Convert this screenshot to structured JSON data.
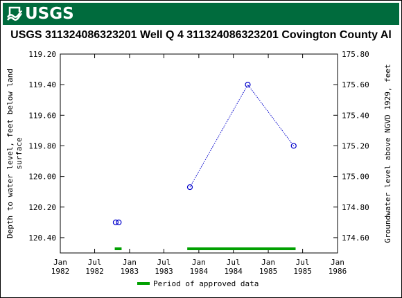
{
  "header": {
    "logo_text": "USGS",
    "colors": {
      "background": "#006b3d",
      "text": "#ffffff"
    }
  },
  "chart_data": {
    "type": "scatter",
    "title": "USGS 311324086323201 Well  Q 4  311324086323201 Covington County Al",
    "ylabel_left": "Depth to water level, feet below land surface",
    "ylabel_right": "Groundwater level above NGVD 1929, feet",
    "y_left_ticks": [
      "119.20",
      "119.40",
      "119.60",
      "119.80",
      "120.00",
      "120.20",
      "120.40"
    ],
    "y_left_range": [
      119.2,
      120.5
    ],
    "y_left_inverted": true,
    "y_right_ticks": [
      "175.80",
      "175.60",
      "175.40",
      "175.20",
      "175.00",
      "174.80",
      "174.60"
    ],
    "x_ticks": [
      {
        "date": "1982-01-01",
        "line1": "Jan",
        "line2": "1982"
      },
      {
        "date": "1982-07-01",
        "line1": "Jul",
        "line2": "1982"
      },
      {
        "date": "1983-01-01",
        "line1": "Jan",
        "line2": "1983"
      },
      {
        "date": "1983-07-01",
        "line1": "Jul",
        "line2": "1983"
      },
      {
        "date": "1984-01-01",
        "line1": "Jan",
        "line2": "1984"
      },
      {
        "date": "1984-07-01",
        "line1": "Jul",
        "line2": "1984"
      },
      {
        "date": "1985-01-01",
        "line1": "Jan",
        "line2": "1985"
      },
      {
        "date": "1985-07-01",
        "line1": "Jul",
        "line2": "1985"
      },
      {
        "date": "1986-01-01",
        "line1": "Jan",
        "line2": "1986"
      }
    ],
    "x_range": [
      "1982-01-01",
      "1986-01-01"
    ],
    "grid": false,
    "series": [
      {
        "name": "",
        "color": "#0000cc",
        "points": [
          {
            "date": "1982-10-20",
            "depth": 120.3
          },
          {
            "date": "1982-11-05",
            "depth": 120.3
          },
          {
            "date": "1983-11-15",
            "depth": 120.07
          },
          {
            "date": "1984-09-15",
            "depth": 119.4
          },
          {
            "date": "1985-05-15",
            "depth": 119.8
          }
        ],
        "connected_segments": [
          [
            2,
            3,
            4
          ]
        ]
      }
    ],
    "approved_periods": [
      {
        "start": "1982-10-15",
        "end": "1982-11-20"
      },
      {
        "start": "1983-11-01",
        "end": "1985-05-25"
      }
    ],
    "approved_color": "#00a000",
    "legend": {
      "label": "Period of approved data",
      "position": "bottom-center"
    }
  }
}
